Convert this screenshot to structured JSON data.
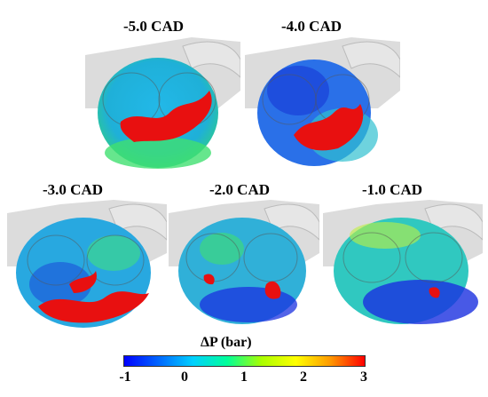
{
  "panels": [
    {
      "label": "-5.0 CAD"
    },
    {
      "label": "-4.0 CAD"
    },
    {
      "label": "-3.0 CAD"
    },
    {
      "label": "-2.0 CAD"
    },
    {
      "label": "-1.0 CAD"
    }
  ],
  "colorbar": {
    "title": "ΔP (bar)",
    "ticks": [
      "-1",
      "0",
      "1",
      "2",
      "3"
    ],
    "colors": [
      "#0000ff",
      "#0066ff",
      "#00d0ff",
      "#00ff99",
      "#aaff00",
      "#ffff00",
      "#ff9900",
      "#ff0000"
    ]
  }
}
